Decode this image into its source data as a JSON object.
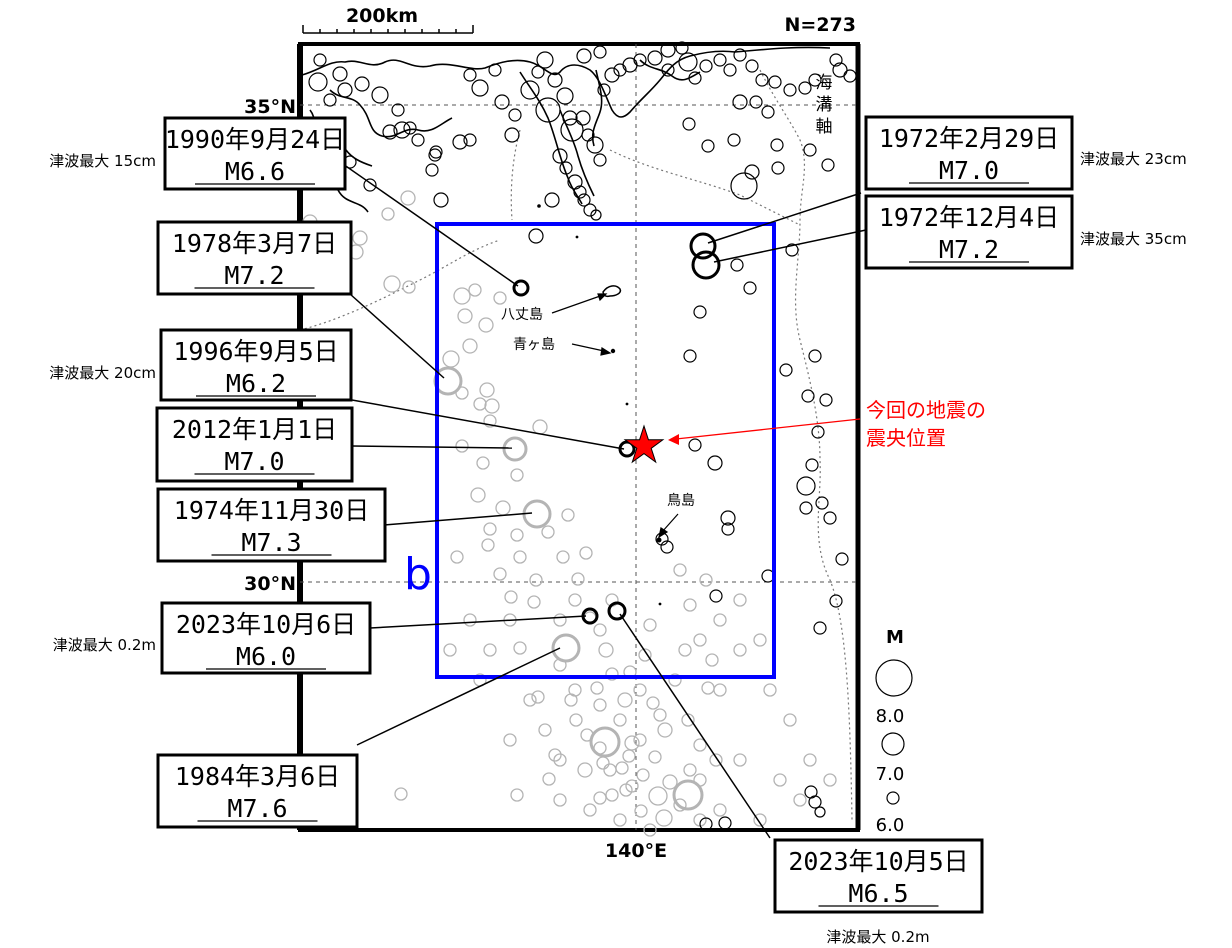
{
  "header": {
    "scale_label": "200km",
    "count_label": "N=273"
  },
  "axes": {
    "lat_35": "35°N",
    "lat_30": "30°N",
    "lon_140": "140°E"
  },
  "region_label": "b",
  "trench_label": [
    "海",
    "溝",
    "軸"
  ],
  "islands": {
    "hachijojima": "八丈島",
    "aogashima": "青ヶ島",
    "torishima": "鳥島"
  },
  "current_quake": {
    "label_line1": "今回の地震の",
    "label_line2": "震央位置",
    "color": "#ff0000"
  },
  "events": [
    {
      "date": "1990年9月24日",
      "mag": "M6.6",
      "tsunami": "津波最大 15cm"
    },
    {
      "date": "1978年3月7日",
      "mag": "M7.2",
      "tsunami": ""
    },
    {
      "date": "1996年9月5日",
      "mag": "M6.2",
      "tsunami": "津波最大 20cm"
    },
    {
      "date": "2012年1月1日",
      "mag": "M7.0",
      "tsunami": ""
    },
    {
      "date": "1974年11月30日",
      "mag": "M7.3",
      "tsunami": ""
    },
    {
      "date": "2023年10月6日",
      "mag": "M6.0",
      "tsunami": "津波最大 0.2m"
    },
    {
      "date": "1984年3月6日",
      "mag": "M7.6",
      "tsunami": ""
    },
    {
      "date": "1972年2月29日",
      "mag": "M7.0",
      "tsunami": "津波最大 23cm"
    },
    {
      "date": "1972年12月4日",
      "mag": "M7.2",
      "tsunami": "津波最大 35cm"
    },
    {
      "date": "2023年10月5日",
      "mag": "M6.5",
      "tsunami": "津波最大 0.2m"
    }
  ],
  "legend": {
    "title": "M",
    "labels": [
      "8.0",
      "7.0",
      "6.0"
    ]
  },
  "colors": {
    "region_box": "#0000ff",
    "star": "#ff0000",
    "past_quake": "#000000",
    "background_quake": "#b4b4b4"
  }
}
